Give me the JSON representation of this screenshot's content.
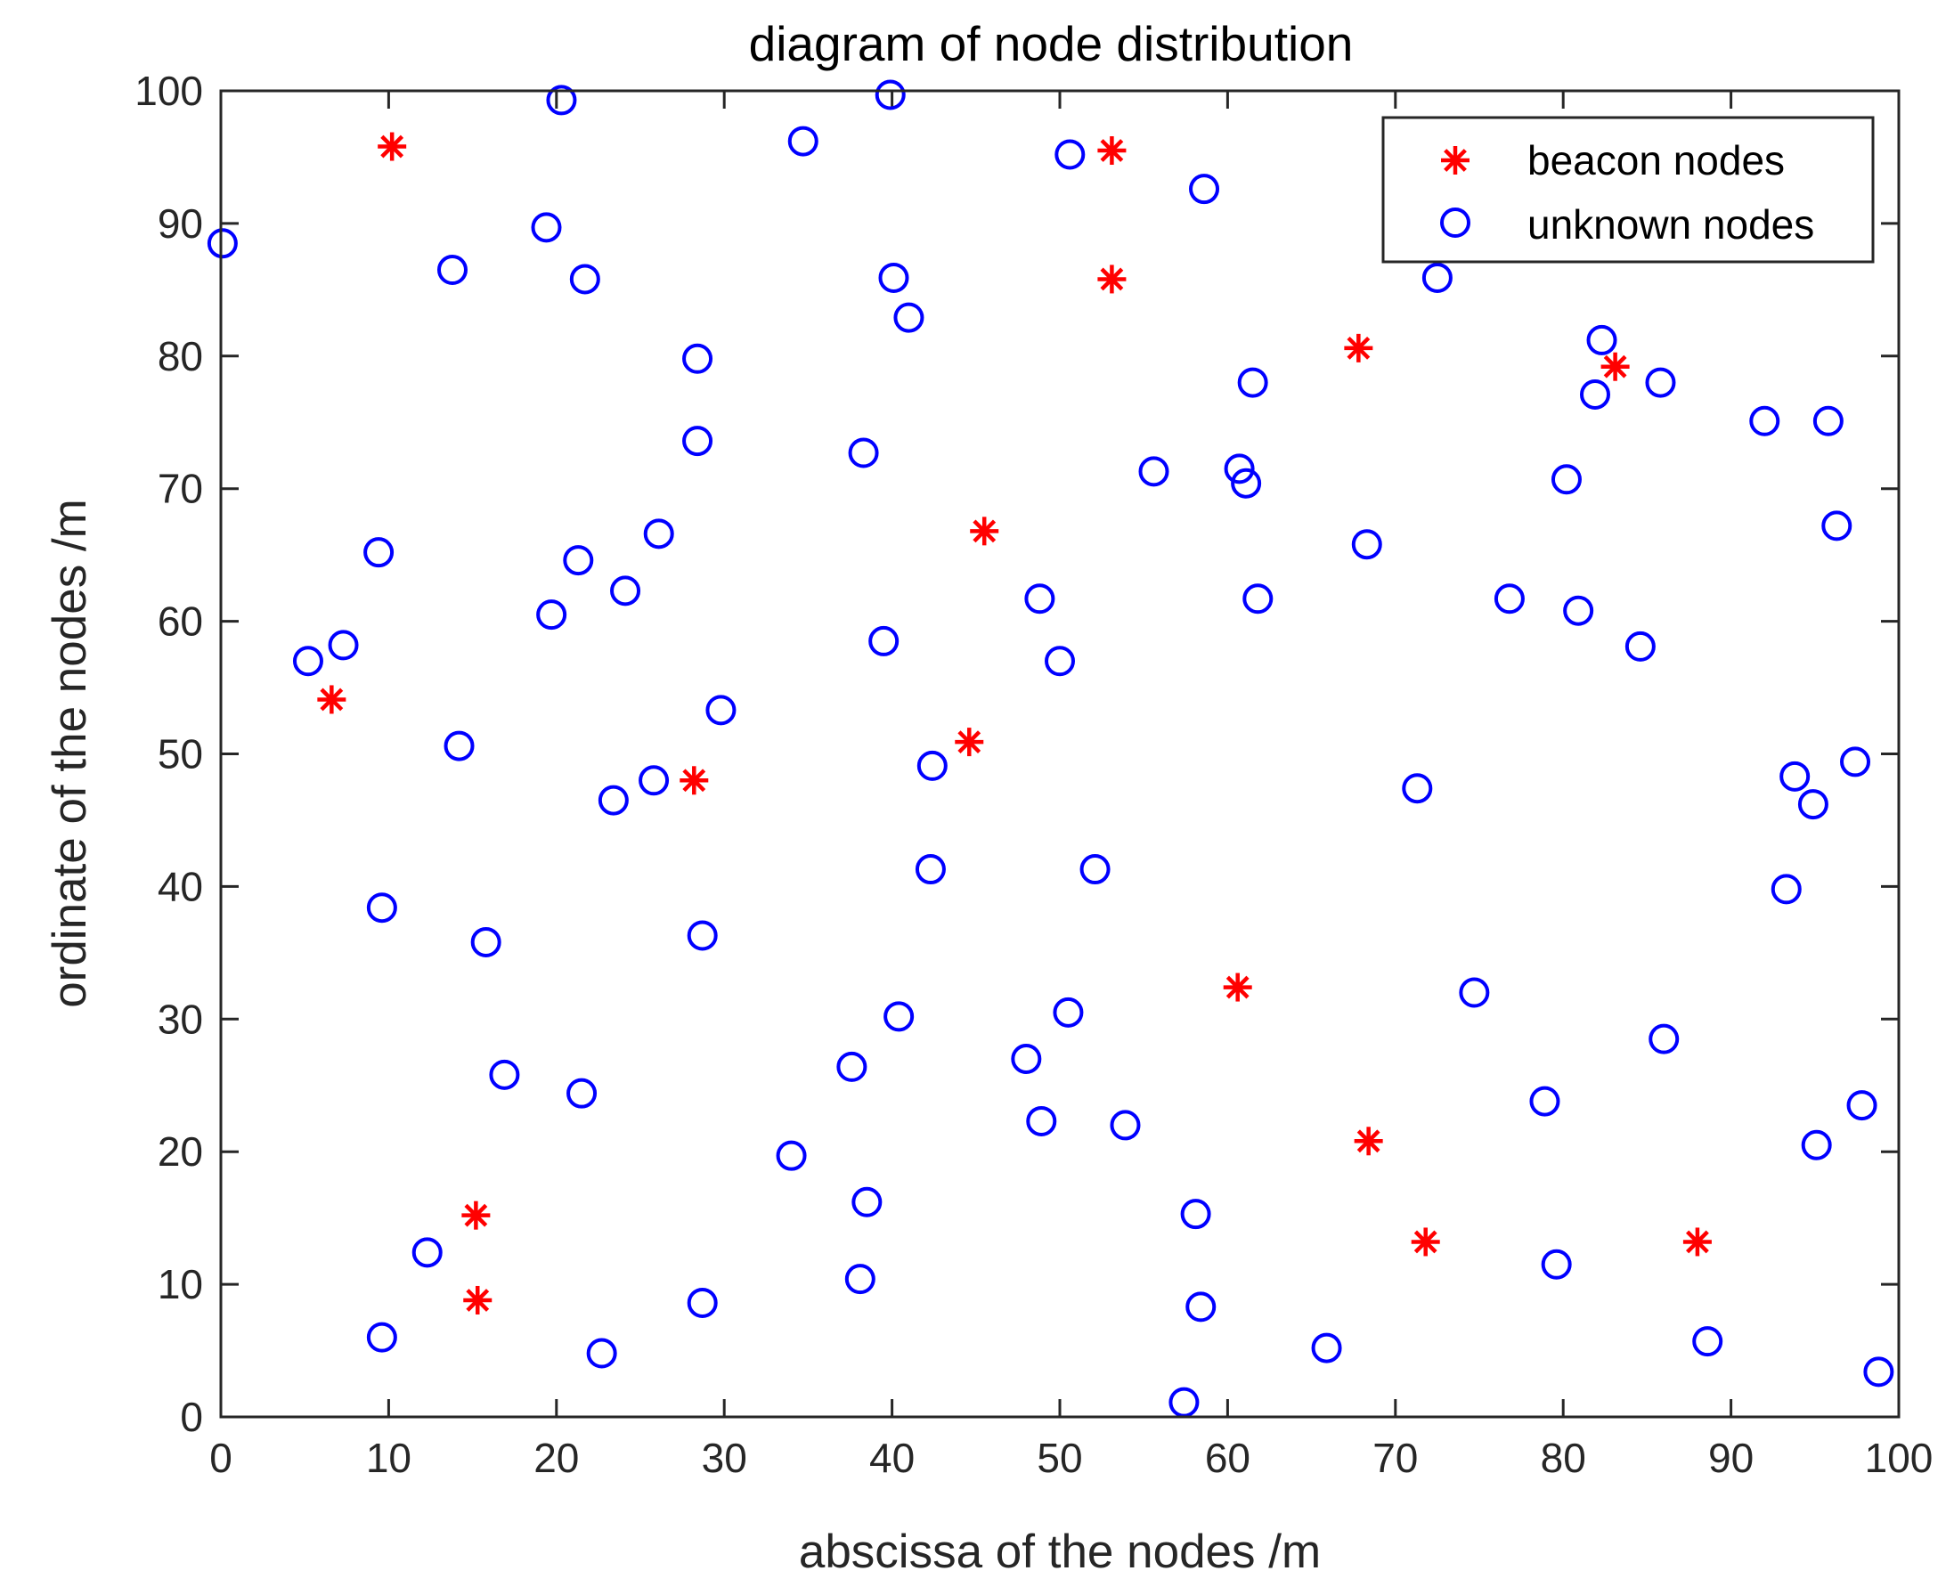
{
  "chart_data": {
    "type": "scatter",
    "title": "diagram of node distribution",
    "xlabel": "abscissa of the nodes /m",
    "ylabel": "ordinate of the nodes /m",
    "xlim": [
      0,
      100
    ],
    "ylim": [
      0,
      100
    ],
    "xticks": [
      0,
      10,
      20,
      30,
      40,
      50,
      60,
      70,
      80,
      90,
      100
    ],
    "yticks": [
      0,
      10,
      20,
      30,
      40,
      50,
      60,
      70,
      80,
      90,
      100
    ],
    "grid": false,
    "legend_position": "top-right",
    "series": [
      {
        "name": "beacon nodes",
        "marker": "asterisk",
        "color": "#ff0000",
        "points": [
          [
            10.2,
            95.8
          ],
          [
            53.1,
            95.5
          ],
          [
            53.1,
            85.8
          ],
          [
            67.8,
            80.6
          ],
          [
            83.1,
            79.2
          ],
          [
            45.5,
            66.8
          ],
          [
            6.6,
            54.1
          ],
          [
            44.6,
            50.9
          ],
          [
            28.2,
            48.0
          ],
          [
            60.6,
            32.4
          ],
          [
            68.4,
            20.8
          ],
          [
            15.2,
            15.2
          ],
          [
            71.8,
            13.2
          ],
          [
            88.0,
            13.2
          ],
          [
            15.3,
            8.8
          ]
        ]
      },
      {
        "name": "unknown nodes",
        "marker": "circle",
        "color": "#0000ff",
        "points": [
          [
            0.1,
            88.5
          ],
          [
            20.3,
            99.3
          ],
          [
            39.9,
            99.7
          ],
          [
            34.7,
            96.2
          ],
          [
            50.6,
            95.2
          ],
          [
            58.6,
            92.6
          ],
          [
            19.4,
            89.7
          ],
          [
            13.8,
            86.5
          ],
          [
            21.7,
            85.8
          ],
          [
            40.1,
            85.9
          ],
          [
            41.0,
            82.9
          ],
          [
            72.5,
            85.9
          ],
          [
            28.4,
            79.8
          ],
          [
            61.5,
            78.0
          ],
          [
            82.3,
            81.2
          ],
          [
            81.9,
            77.1
          ],
          [
            85.8,
            78.0
          ],
          [
            28.4,
            73.6
          ],
          [
            38.3,
            72.7
          ],
          [
            55.6,
            71.3
          ],
          [
            60.7,
            71.5
          ],
          [
            61.1,
            70.4
          ],
          [
            80.2,
            70.7
          ],
          [
            92.0,
            75.1
          ],
          [
            95.8,
            75.1
          ],
          [
            9.4,
            65.2
          ],
          [
            21.3,
            64.6
          ],
          [
            26.1,
            66.6
          ],
          [
            24.1,
            62.3
          ],
          [
            68.3,
            65.8
          ],
          [
            96.3,
            67.2
          ],
          [
            19.7,
            60.5
          ],
          [
            48.8,
            61.7
          ],
          [
            61.8,
            61.7
          ],
          [
            76.8,
            61.7
          ],
          [
            80.9,
            60.8
          ],
          [
            5.2,
            57.0
          ],
          [
            7.3,
            58.2
          ],
          [
            39.5,
            58.5
          ],
          [
            50.0,
            57.0
          ],
          [
            84.6,
            58.1
          ],
          [
            29.8,
            53.3
          ],
          [
            14.2,
            50.6
          ],
          [
            42.4,
            49.1
          ],
          [
            97.4,
            49.4
          ],
          [
            25.8,
            48.0
          ],
          [
            23.4,
            46.5
          ],
          [
            71.3,
            47.4
          ],
          [
            93.8,
            48.3
          ],
          [
            94.9,
            46.2
          ],
          [
            42.3,
            41.3
          ],
          [
            52.1,
            41.3
          ],
          [
            93.3,
            39.8
          ],
          [
            9.6,
            38.4
          ],
          [
            15.8,
            35.8
          ],
          [
            28.7,
            36.3
          ],
          [
            40.4,
            30.2
          ],
          [
            50.5,
            30.5
          ],
          [
            74.7,
            32.0
          ],
          [
            86.0,
            28.5
          ],
          [
            37.6,
            26.4
          ],
          [
            48.0,
            27.0
          ],
          [
            16.9,
            25.8
          ],
          [
            21.5,
            24.4
          ],
          [
            48.9,
            22.3
          ],
          [
            53.9,
            22.0
          ],
          [
            78.9,
            23.8
          ],
          [
            97.8,
            23.5
          ],
          [
            95.1,
            20.5
          ],
          [
            34.0,
            19.7
          ],
          [
            38.5,
            16.2
          ],
          [
            58.1,
            15.3
          ],
          [
            12.3,
            12.4
          ],
          [
            38.1,
            10.4
          ],
          [
            79.6,
            11.5
          ],
          [
            28.7,
            8.6
          ],
          [
            58.4,
            8.3
          ],
          [
            9.6,
            6.0
          ],
          [
            22.7,
            4.8
          ],
          [
            65.9,
            5.2
          ],
          [
            88.6,
            5.7
          ],
          [
            57.4,
            1.1
          ],
          [
            98.8,
            3.4
          ]
        ]
      }
    ]
  }
}
